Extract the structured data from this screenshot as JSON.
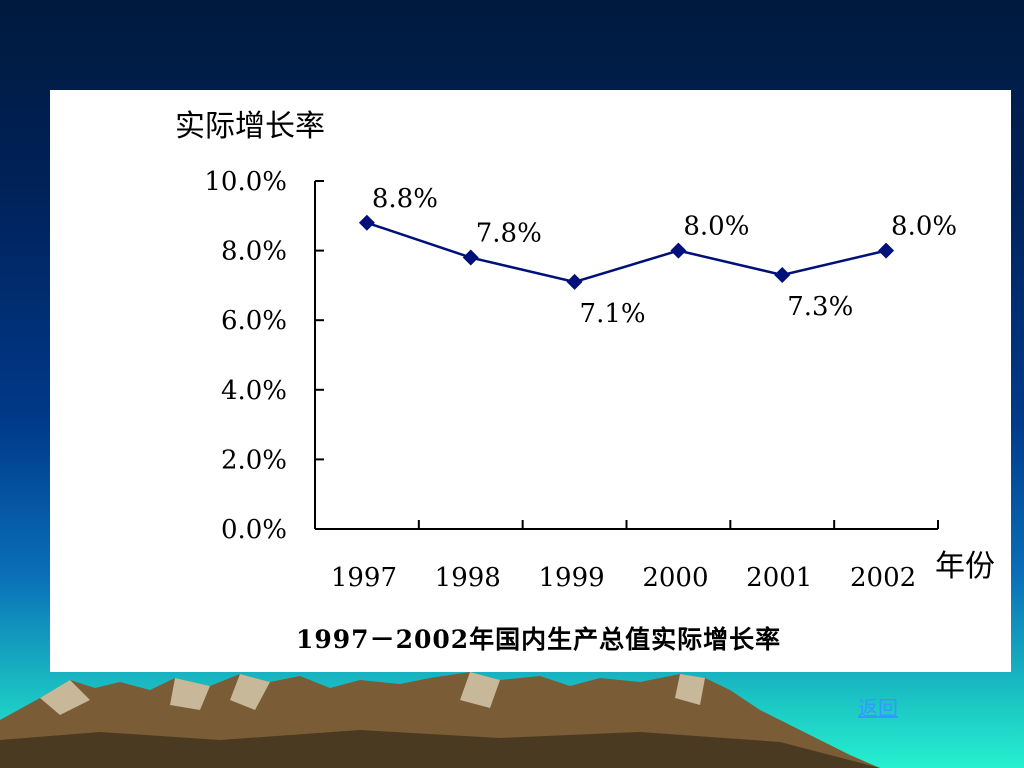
{
  "slide": {
    "return_link": "返回",
    "colors": {
      "line": "#00107a",
      "marker": "#00107a",
      "axis": "#000000"
    }
  },
  "chart_data": {
    "type": "line",
    "ylabel": "实际增长率",
    "xlabel": "年份",
    "caption": "1997－2002年国内生产总值实际增长率",
    "categories": [
      "1997",
      "1998",
      "1999",
      "2000",
      "2001",
      "2002"
    ],
    "values": [
      8.8,
      7.8,
      7.1,
      8.0,
      7.3,
      8.0
    ],
    "data_labels": [
      "8.8%",
      "7.8%",
      "7.1%",
      "8.0%",
      "7.3%",
      "8.0%"
    ],
    "y_ticks": [
      "0.0%",
      "2.0%",
      "4.0%",
      "6.0%",
      "8.0%",
      "10.0%"
    ],
    "ylim": [
      0,
      10
    ],
    "marker": "diamond",
    "grid": false,
    "legend": "none"
  }
}
